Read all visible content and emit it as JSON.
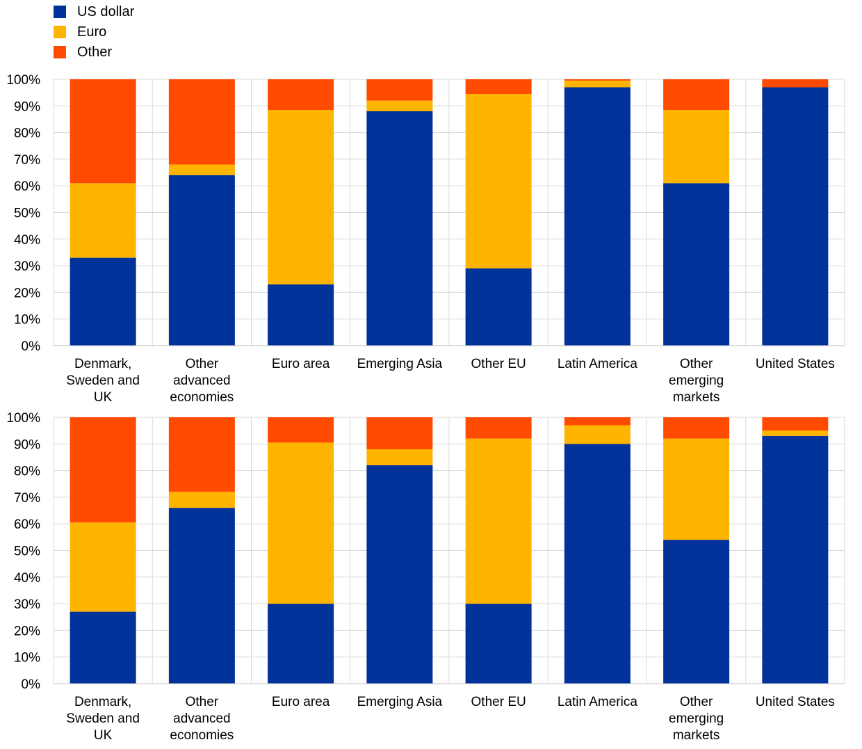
{
  "legend": {
    "items": [
      {
        "label": "US dollar",
        "color": "#003299"
      },
      {
        "label": "Euro",
        "color": "#FFB400"
      },
      {
        "label": "Other",
        "color": "#FF4B00"
      }
    ]
  },
  "chart_data": [
    {
      "type": "bar",
      "stacked": true,
      "categories": [
        [
          "Denmark,",
          "Sweden and",
          "UK"
        ],
        [
          "Other",
          "advanced",
          "economies"
        ],
        [
          "Euro area"
        ],
        [
          "Emerging Asia"
        ],
        [
          "Other EU"
        ],
        [
          "Latin America"
        ],
        [
          "Other",
          "emerging",
          "markets"
        ],
        [
          "United States"
        ]
      ],
      "series": [
        {
          "name": "US dollar",
          "color": "#003299",
          "values": [
            33,
            64,
            23,
            88,
            29,
            97,
            61,
            97
          ]
        },
        {
          "name": "Euro",
          "color": "#FFB400",
          "values": [
            28,
            4,
            65.5,
            4,
            65.5,
            2.5,
            27.5,
            0
          ]
        },
        {
          "name": "Other",
          "color": "#FF4B00",
          "values": [
            39,
            32,
            11.5,
            8,
            5.5,
            0.5,
            11.5,
            3
          ]
        }
      ],
      "ylim": [
        0,
        100
      ],
      "yticks": [
        "0%",
        "10%",
        "20%",
        "30%",
        "40%",
        "50%",
        "60%",
        "70%",
        "80%",
        "90%",
        "100%"
      ],
      "legend": "top-left"
    },
    {
      "type": "bar",
      "stacked": true,
      "categories": [
        [
          "Denmark,",
          "Sweden and",
          "UK"
        ],
        [
          "Other",
          "advanced",
          "economies"
        ],
        [
          "Euro area"
        ],
        [
          "Emerging Asia"
        ],
        [
          "Other EU"
        ],
        [
          "Latin America"
        ],
        [
          "Other",
          "emerging",
          "markets"
        ],
        [
          "United States"
        ]
      ],
      "series": [
        {
          "name": "US dollar",
          "color": "#003299",
          "values": [
            27,
            66,
            30,
            82,
            30,
            90,
            54,
            93
          ]
        },
        {
          "name": "Euro",
          "color": "#FFB400",
          "values": [
            33.5,
            6,
            60.5,
            6,
            62,
            7,
            38,
            2
          ]
        },
        {
          "name": "Other",
          "color": "#FF4B00",
          "values": [
            39.5,
            28,
            9.5,
            12,
            8,
            3,
            8,
            5
          ]
        }
      ],
      "ylim": [
        0,
        100
      ],
      "yticks": [
        "0%",
        "10%",
        "20%",
        "30%",
        "40%",
        "50%",
        "60%",
        "70%",
        "80%",
        "90%",
        "100%"
      ]
    }
  ]
}
